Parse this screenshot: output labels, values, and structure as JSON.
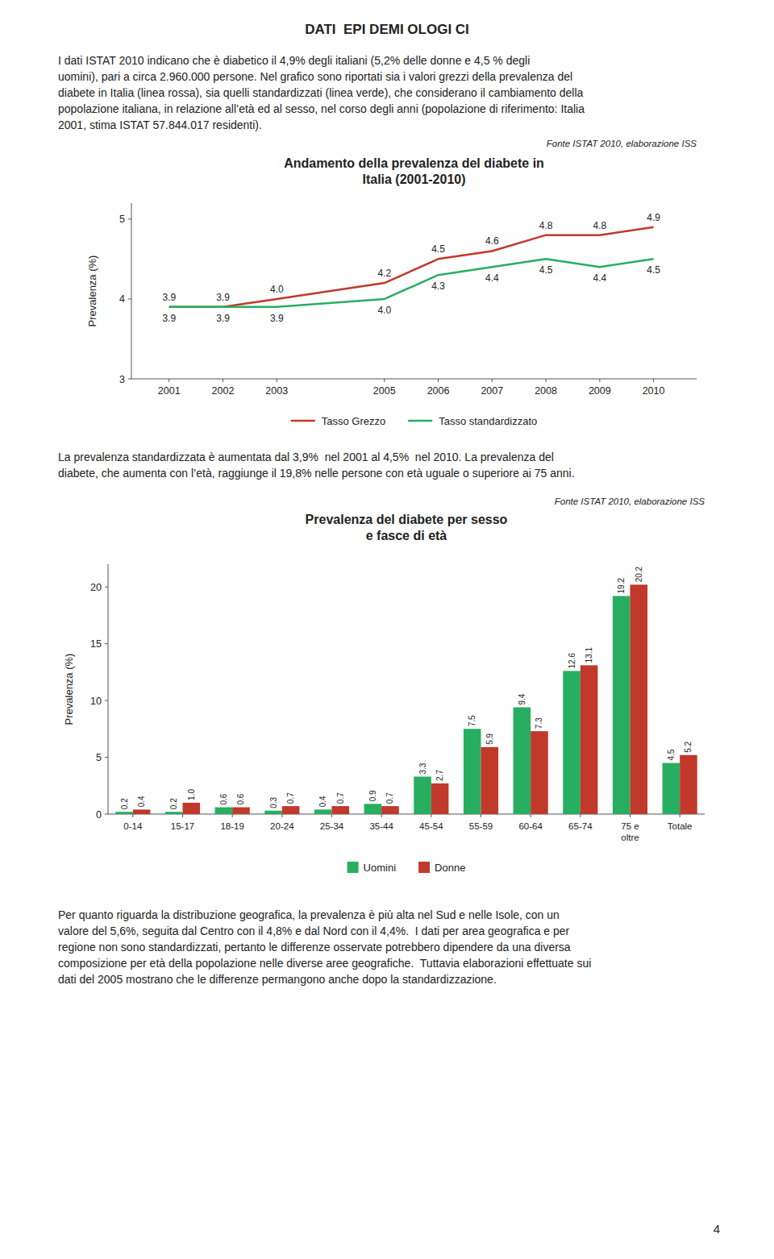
{
  "page_title": "DATI  EPI DEMI OLOGI CI",
  "intro": [
    "I dati ISTAT 2010 indicano che è diabetico il 4,9% degli italiani (5,2% delle donne e 4,5 % degli",
    "uomini), pari a circa 2.960.000 persone. Nel grafico sono riportati sia i valori grezzi della prevalenza del",
    "diabete in Italia (linea rossa), sia quelli standardizzati (linea verde), che considerano il cambiamento della",
    "popolazione italiana, in relazione all’età ed al sesso, nel corso degli anni (popolazione di riferimento: Italia",
    "2001, stima ISTAT 57.844.017 residenti)."
  ],
  "mid_text": [
    "La prevalenza standardizzata è aumentata dal 3,9%  nel 2001 al 4,5%  nel 2010. La prevalenza del",
    "diabete, che aumenta con l’età, raggiunge il 19,8% nelle persone con età uguale o superiore ai 75 anni."
  ],
  "bottom_text": [
    "Per quanto riguarda la distribuzione geografica, la prevalenza è più alta nel Sud e nelle Isole, con un",
    "valore del 5,6%, seguita dal Centro con il 4,8% e dal Nord con il 4,4%.  I dati per area geografica e per",
    "regione non sono standardizzati, pertanto le differenze osservate potrebbero dipendere da una diversa",
    "composizione per età della popolazione nelle diverse aree geografiche.  Tuttavia elaborazioni effettuate sui",
    "dati del 2005 mostrano che le differenze permangono anche dopo la standardizzazione."
  ],
  "page_number": "4",
  "chart_data": [
    {
      "type": "line",
      "title": "Andamento della prevalenza del diabete in\nItalia (2001-2010)",
      "source": "Fonte ISTAT 2010, elaborazione ISS",
      "ylabel": "Prevalenza (%)",
      "x": [
        2001,
        2002,
        2003,
        2005,
        2006,
        2007,
        2008,
        2009,
        2010
      ],
      "xlim": [
        2000.3,
        2010.8
      ],
      "xticks": [
        2001,
        2002,
        2003,
        2005,
        2006,
        2007,
        2008,
        2009,
        2010
      ],
      "ylim": [
        3,
        5.2
      ],
      "yticks": [
        3,
        4,
        5
      ],
      "grid": false,
      "legend": "bottom",
      "data_labels": true,
      "series": [
        {
          "name": "Tasso Grezzo",
          "color": "#c0392b",
          "values": [
            3.9,
            3.9,
            4.0,
            4.2,
            4.5,
            4.6,
            4.8,
            4.8,
            4.9
          ],
          "value_labels": [
            "3.9",
            "3.9",
            "4.0",
            "4.2",
            "4.5",
            "4.6",
            "4.8",
            "4.8",
            "4.9"
          ]
        },
        {
          "name": "Tasso standardizzato",
          "color": "#27ae60",
          "values": [
            3.9,
            3.9,
            3.9,
            4.0,
            4.3,
            4.4,
            4.5,
            4.4,
            4.5
          ],
          "value_labels": [
            "3.9",
            "3.9",
            "3.9",
            "4.0",
            "4.3",
            "4.4",
            "4.5",
            "4.4",
            "4.5"
          ]
        }
      ]
    },
    {
      "type": "bar",
      "title": "Prevalenza del diabete per sesso\ne fasce di età",
      "source": "Fonte ISTAT 2010, elaborazione ISS",
      "ylabel": "Prevalenza (%)",
      "categories": [
        "0-14",
        "15-17",
        "18-19",
        "20-24",
        "25-34",
        "35-44",
        "45-54",
        "55-59",
        "60-64",
        "65-74",
        "75 e\noltre",
        "Totale"
      ],
      "ylim": [
        0,
        22
      ],
      "yticks": [
        0,
        5,
        10,
        15,
        20
      ],
      "grid": false,
      "legend": "bottom",
      "data_labels": true,
      "series": [
        {
          "name": "Uomini",
          "color": "#27ae60",
          "values": [
            0.2,
            0.2,
            0.6,
            0.3,
            0.4,
            0.9,
            3.3,
            7.5,
            9.4,
            12.6,
            19.2,
            4.5
          ],
          "value_labels": [
            "0.2",
            "0.2",
            "0.6",
            "0.3",
            "0.4",
            "0.9",
            "3.3",
            "7.5",
            "9.4",
            "12.6",
            "19.2",
            "4.5"
          ]
        },
        {
          "name": "Donne",
          "color": "#c0392b",
          "values": [
            0.4,
            1.0,
            0.6,
            0.7,
            0.7,
            0.7,
            2.7,
            5.9,
            7.3,
            13.1,
            20.2,
            5.2
          ],
          "value_labels": [
            "0.4",
            "1.0",
            "0.6",
            "0.7",
            "0.7",
            "0.7",
            "2.7",
            "5.9",
            "7.3",
            "13.1",
            "20.2",
            "5.2"
          ]
        }
      ]
    }
  ]
}
